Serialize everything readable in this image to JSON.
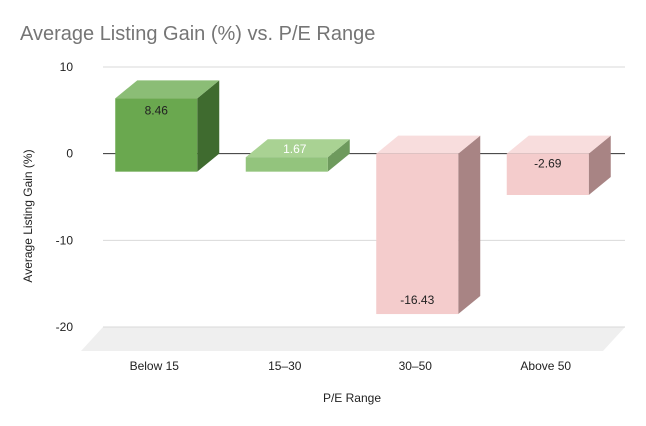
{
  "chart_data": {
    "type": "bar",
    "title": "Average Listing Gain (%) vs. P/E Range",
    "xlabel": "P/E Range",
    "ylabel": "Average Listing Gain (%)",
    "categories": [
      "Below 15",
      "15–30",
      "30–50",
      "Above 50"
    ],
    "values": [
      8.46,
      1.67,
      -16.43,
      -2.69
    ],
    "data_labels": [
      "8.46",
      "1.67",
      "-16.43",
      "-2.69"
    ],
    "ylim": [
      -20,
      10
    ],
    "yticks": [
      10,
      0,
      -10,
      -20
    ],
    "ytick_labels": [
      "10",
      "0",
      "-10",
      "-20"
    ],
    "grid": true,
    "legend": "none",
    "style": "3d",
    "colors": {
      "fronts": [
        "#6aa84f",
        "#93c47d",
        "#f4cccc",
        "#f4cccc"
      ],
      "tops": [
        "#8bbd76",
        "#a9d293",
        "#f8dddd",
        "#f8dddd"
      ],
      "sides": [
        "#3f6b2f",
        "#6e9a5d",
        "#a88484",
        "#a88484"
      ],
      "label_colors": [
        "#222222",
        "#ffffff",
        "#222222",
        "#222222"
      ],
      "floor": "#efefef",
      "gridline": "#d9d9d9",
      "zeroline": "#333333",
      "title": "#757575"
    }
  }
}
